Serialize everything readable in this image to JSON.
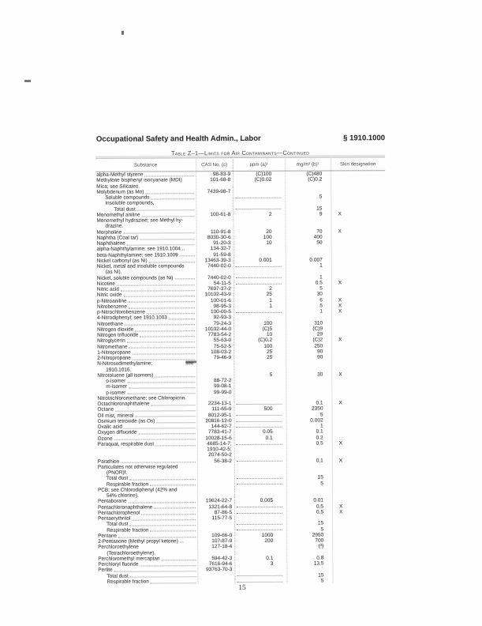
{
  "page": {
    "header_left": "Occupational Safety and Health Admin., Labor",
    "header_right": "§ 1910.1000",
    "table_caption": "Table Z–1—Limits for Air Contaminants—Continued",
    "page_number": "15"
  },
  "table": {
    "columns": [
      "Substance",
      "CAS No. (c)",
      "ppm (a)¹",
      "mg/m³ (b)¹",
      "Skin designation"
    ],
    "rows": [
      {
        "s": "alpha-Methyl styrene",
        "dots": true,
        "cas": "98-83-9",
        "ppm": "(C)100",
        "mg": "(C)480"
      },
      {
        "s": "Methylene bisphenyl isocyanate (MDI)",
        "cas": "101-68-8",
        "ppm": "(C)0.02",
        "mg": "(C)0.2"
      },
      {
        "s": "Mica; see Silicates."
      },
      {
        "s": "Molybdenum (as Mo)",
        "dots": true,
        "cas": "7439-98-7"
      },
      {
        "s": "Soluble compounds",
        "ind": 1,
        "dots": true,
        "pd": true,
        "mg": "5"
      },
      {
        "s": "Insoluble compounds,",
        "ind": 1
      },
      {
        "s": "Total dust",
        "ind": 2,
        "dots": true,
        "pd": true,
        "mg": "15"
      },
      {
        "s": "Monomethyl aniline",
        "dots": true,
        "cas": "100-61-8",
        "ppm": "2",
        "mg": "9",
        "skin": "X"
      },
      {
        "s": "Monomethyl hydrazine; see Methyl hy-"
      },
      {
        "s": "drazine.",
        "ind": 1
      },
      {
        "s": "Morpholine",
        "dots": true,
        "cas": "110-91-8",
        "ppm": "20",
        "mg": "70",
        "skin": "X"
      },
      {
        "s": "Naphtha (Coal tar)",
        "dots": true,
        "cas": "8030-30-6",
        "ppm": "100",
        "mg": "400"
      },
      {
        "s": "Naphthalene",
        "dots": true,
        "cas": "91-20-3",
        "ppm": "10",
        "mg": "50"
      },
      {
        "s": "alpha-Naphthylamine; see 1910.1004 ..",
        "cas": "134-32-7"
      },
      {
        "s": "beta-Naphthylamine; see 1910.1009",
        "dots": true,
        "cas": "91-59-8"
      },
      {
        "s": "Nickel carbonyl (as Ni)",
        "dots": true,
        "cas": "13463-39-3",
        "ppm": "0.001",
        "mg": "0.007"
      },
      {
        "s": "Nickel, metal and insoluble compounds",
        "cas": "7440-02-0",
        "pd": true,
        "mg": "1"
      },
      {
        "s": "(as Ni).",
        "ind": 1
      },
      {
        "s": "Nickel, soluble compounds (as Ni)",
        "dots": true,
        "cas": "7440-02-0",
        "pd": true,
        "mg": "1"
      },
      {
        "s": "Nicotine",
        "dots": true,
        "cas": "54-11-5",
        "pd": true,
        "mg": "0.5",
        "skin": "X"
      },
      {
        "s": "Nitric acid",
        "dots": true,
        "cas": "7697-37-2",
        "ppm": "2",
        "mg": "5"
      },
      {
        "s": "Nitric oxide",
        "dots": true,
        "cas": "10102-43-9",
        "ppm": "25",
        "mg": "30"
      },
      {
        "s": "p-Nitroaniline",
        "dots": true,
        "cas": "100-01-6",
        "ppm": "1",
        "mg": "6",
        "skin": "X"
      },
      {
        "s": "Nitrobenzene",
        "dots": true,
        "cas": "98-95-3",
        "ppm": "1",
        "mg": "5",
        "skin": "X"
      },
      {
        "s": "p-Nitrochlorobenzene",
        "dots": true,
        "cas": "100-00-5",
        "pd": true,
        "mg": "1",
        "skin": "X"
      },
      {
        "s": "4-Nitrodiphenyl; see 1910.1003",
        "dots": true,
        "cas": "92-93-3"
      },
      {
        "s": "Nitroethane",
        "dots": true,
        "cas": "79-24-3",
        "ppm": "100",
        "mg": "310"
      },
      {
        "s": "Nitrogen dioxide",
        "dots": true,
        "cas": "10102-44-0",
        "ppm": "(C)5",
        "mg": "(C)9"
      },
      {
        "s": "Nitrogen trifluoride",
        "dots": true,
        "cas": "7783-54-2",
        "ppm": "10",
        "mg": "29"
      },
      {
        "s": "Nitroglycerin",
        "dots": true,
        "cas": "55-63-0",
        "ppm": "(C)0.2",
        "mg": "(C)2",
        "skin": "X"
      },
      {
        "s": "Nitromethane",
        "dots": true,
        "cas": "75-52-5",
        "ppm": "100",
        "mg": "250"
      },
      {
        "s": "1-Nitropropane",
        "dots": true,
        "cas": "108-03-2",
        "ppm": "25",
        "mg": "90"
      },
      {
        "s": "2-Nitropropane",
        "dots": true,
        "cas": "79-46-9",
        "ppm": "25",
        "mg": "90"
      },
      {
        "s": "N-Nitrosodimethylamine;",
        "s2": "see"
      },
      {
        "s": "1910.1016.",
        "ind": 1
      },
      {
        "s": "Nitrotoluene (all isomers)",
        "dots": true,
        "ppm": "5",
        "mg": "30",
        "skin": "X"
      },
      {
        "s": "o-isomer",
        "ind": 1,
        "dots": true,
        "cas": "88-72-2"
      },
      {
        "s": "m-isomer",
        "ind": 1,
        "dots": true,
        "cas": "99-08-1"
      },
      {
        "s": "p-isomer",
        "ind": 1,
        "dots": true,
        "cas": "99-99-0"
      },
      {
        "s": "Nitrotrichloromethane; see Chloropicrin."
      },
      {
        "s": "Octachloronaphthalene",
        "dots": true,
        "cas": "2234-13-1",
        "pd": true,
        "mg": "0.1",
        "skin": "X"
      },
      {
        "s": "Octane",
        "dots": true,
        "cas": "111-65-9",
        "ppm": "500",
        "mg": "2350"
      },
      {
        "s": "Oil mist, mineral",
        "dots": true,
        "cas": "8012-95-1",
        "pd": true,
        "mg": "5"
      },
      {
        "s": "Osmium tetroxide (as Os)",
        "dots": true,
        "cas": "20816-12-0",
        "pd": true,
        "mg": "0.002"
      },
      {
        "s": "Oxalic acid",
        "dots": true,
        "cas": "144-62-7",
        "pd": true,
        "mg": "1"
      },
      {
        "s": "Oxygen difluoride",
        "dots": true,
        "cas": "7783-41-7",
        "ppm": "0.05",
        "mg": "0.1"
      },
      {
        "s": "Ozone",
        "dots": true,
        "cas": "10028-15-6",
        "ppm": "0.1",
        "mg": "0.2"
      },
      {
        "s": "Paraquat, respirable dust",
        "dots": true,
        "cas": "4685-14-7;",
        "pd": true,
        "mg": "0.5",
        "skin": "X"
      },
      {
        "cas": "1910-42-5;"
      },
      {
        "cas": "2074-50-2"
      },
      {
        "s": "Parathion",
        "dots": true,
        "cas": "56-38-2",
        "pd": true,
        "mg": "0.1",
        "skin": "X"
      },
      {
        "s": "Particulates not otherwise regulated"
      },
      {
        "s": "(PNOR)f.",
        "ind": 1
      },
      {
        "s": "Total dust",
        "ind": 1,
        "dots": true,
        "pd": true,
        "mg": "15"
      },
      {
        "s": "Respirable fraction",
        "ind": 1,
        "dots": true,
        "pd": true,
        "mg": "5"
      },
      {
        "s": "PCB; see Chlorodiphenyl (42% and"
      },
      {
        "s": "54% chlorine).",
        "ind": 1
      },
      {
        "s": "Pentaborane",
        "dots": true,
        "cas": "19624-22-7",
        "ppm": "0.005",
        "mg": "0.01"
      },
      {
        "s": "Pentachloronaphthalene",
        "dots": true,
        "cas": "1321-64-8",
        "pd": true,
        "mg": "0.5",
        "skin": "X"
      },
      {
        "s": "Pentachlorophenol",
        "dots": true,
        "cas": "87-86-5",
        "pd": true,
        "mg": "0.5",
        "skin": "X"
      },
      {
        "s": "Pentaerythritol",
        "dots": true,
        "cas": "115-77-5"
      },
      {
        "s": "Total dust",
        "ind": 1,
        "dots": true,
        "pd": true,
        "mg": "15"
      },
      {
        "s": "Respirable fraction",
        "ind": 1,
        "dots": true,
        "pd": true,
        "mg": "5"
      },
      {
        "s": "Pentane",
        "dots": true,
        "cas": "109-66-0",
        "ppm": "1000",
        "mg": "2950"
      },
      {
        "s": "2-Pentanone (Methyl propyl ketone) ...",
        "cas": "107-87-9",
        "ppm": "200",
        "mg": "700"
      },
      {
        "s": "Perchloroethylene",
        "cas": "127-18-4",
        "mg": "(²)"
      },
      {
        "s": "(Tetrachloroethylene).",
        "ind": 1
      },
      {
        "s": "Perchloromethyl mercaptan",
        "dots": true,
        "cas": "594-42-3",
        "ppm": "0.1",
        "mg": "0.8"
      },
      {
        "s": "Perchloryl fluoride",
        "dots": true,
        "cas": "7616-94-6",
        "ppm": "3",
        "mg": "13.5"
      },
      {
        "s": "Perlite",
        "dots": true,
        "cas": "93763-70-3"
      },
      {
        "s": "Total dust",
        "ind": 1,
        "dots": true,
        "pd": true,
        "mg": "15"
      },
      {
        "s": "Respirable fraction",
        "ind": 1,
        "dots": true,
        "pd": true,
        "mg": "5"
      }
    ]
  }
}
